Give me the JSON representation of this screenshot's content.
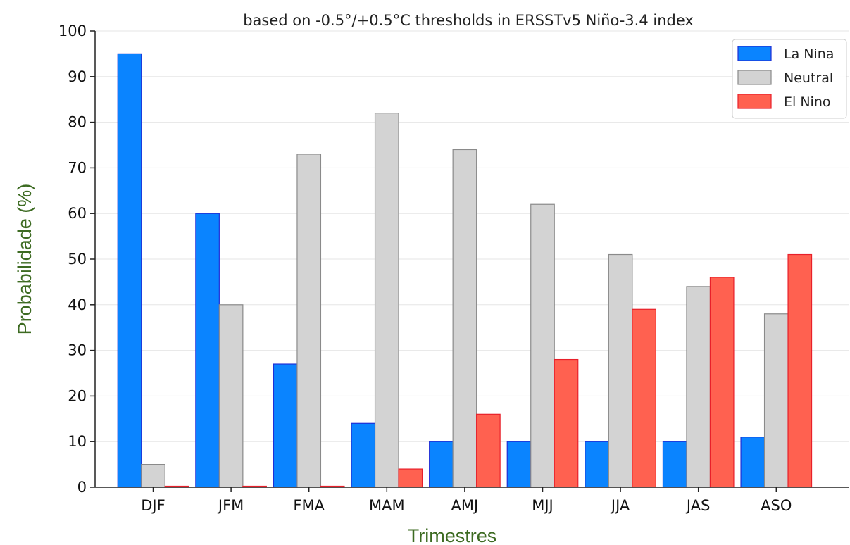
{
  "chart_data": {
    "type": "bar",
    "title": "based on -0.5°/+0.5°C thresholds in ERSSTv5 Niño-3.4 index",
    "xlabel": "Trimestres",
    "ylabel": "Probabilidade (%)",
    "ylim": [
      0,
      100
    ],
    "yticks": [
      "0",
      "10",
      "20",
      "30",
      "40",
      "50",
      "60",
      "70",
      "80",
      "90",
      "100"
    ],
    "categories": [
      "DJF",
      "JFM",
      "FMA",
      "MAM",
      "AMJ",
      "MJJ",
      "JJA",
      "JAS",
      "ASO"
    ],
    "grid": "horizontal",
    "legend_position": "top-right",
    "series": [
      {
        "name": "La Nina",
        "color": "#0a84ff",
        "edge": "#1f2fd6",
        "values": [
          95,
          60,
          27,
          14,
          10,
          10,
          10,
          10,
          11
        ]
      },
      {
        "name": "Neutral",
        "color": "#d3d3d3",
        "edge": "#8a8a8a",
        "values": [
          5,
          40,
          73,
          82,
          74,
          62,
          51,
          44,
          38
        ]
      },
      {
        "name": "El Nino",
        "color": "#ff6150",
        "edge": "#e8202a",
        "values": [
          0,
          0,
          0,
          4,
          16,
          28,
          39,
          46,
          51
        ]
      }
    ],
    "axis_label_color": "#3d6b22"
  }
}
